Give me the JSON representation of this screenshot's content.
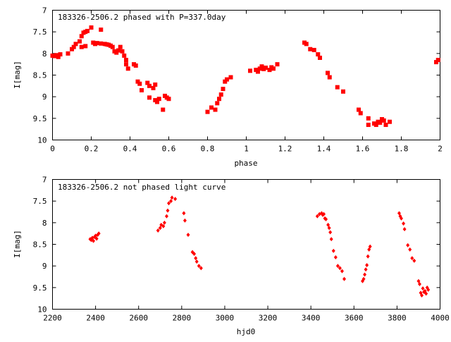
{
  "chart_data": [
    {
      "type": "scatter",
      "title": "183326-2506.2 phased with P=337.0day",
      "xlabel": "phase",
      "ylabel": "I[mag]",
      "xlim": [
        0,
        2
      ],
      "ylim": [
        7,
        10
      ],
      "y_inverted": true,
      "grid": false,
      "marker_color": "#ff0000",
      "marker": "filled-square",
      "x_ticks": [
        "0",
        "0.2",
        "0.4",
        "0.6",
        "0.8",
        "1",
        "1.2",
        "1.4",
        "1.6",
        "1.8",
        "2"
      ],
      "y_ticks": [
        "7",
        "7.5",
        "8",
        "8.5",
        "9",
        "9.5",
        "10"
      ],
      "points": [
        [
          0.0,
          8.05
        ],
        [
          0.01,
          8.06
        ],
        [
          0.02,
          8.04
        ],
        [
          0.03,
          8.08
        ],
        [
          0.04,
          8.02
        ],
        [
          0.08,
          8.0
        ],
        [
          0.1,
          7.9
        ],
        [
          0.11,
          7.85
        ],
        [
          0.12,
          7.78
        ],
        [
          0.14,
          7.72
        ],
        [
          0.15,
          7.6
        ],
        [
          0.16,
          7.52
        ],
        [
          0.17,
          7.5
        ],
        [
          0.18,
          7.48
        ],
        [
          0.15,
          7.85
        ],
        [
          0.17,
          7.83
        ],
        [
          0.2,
          7.4
        ],
        [
          0.21,
          7.75
        ],
        [
          0.22,
          7.78
        ],
        [
          0.23,
          7.76
        ],
        [
          0.25,
          7.77
        ],
        [
          0.25,
          7.45
        ],
        [
          0.27,
          7.78
        ],
        [
          0.28,
          7.79
        ],
        [
          0.29,
          7.8
        ],
        [
          0.3,
          7.82
        ],
        [
          0.31,
          7.85
        ],
        [
          0.32,
          7.95
        ],
        [
          0.33,
          7.98
        ],
        [
          0.34,
          7.93
        ],
        [
          0.35,
          7.85
        ],
        [
          0.36,
          7.95
        ],
        [
          0.37,
          8.05
        ],
        [
          0.38,
          8.15
        ],
        [
          0.38,
          8.25
        ],
        [
          0.39,
          8.35
        ],
        [
          0.42,
          8.25
        ],
        [
          0.43,
          8.28
        ],
        [
          0.44,
          8.65
        ],
        [
          0.45,
          8.7
        ],
        [
          0.46,
          8.85
        ],
        [
          0.49,
          8.68
        ],
        [
          0.5,
          8.75
        ],
        [
          0.5,
          9.02
        ],
        [
          0.52,
          8.8
        ],
        [
          0.53,
          8.72
        ],
        [
          0.53,
          9.08
        ],
        [
          0.54,
          9.12
        ],
        [
          0.55,
          9.05
        ],
        [
          0.57,
          9.3
        ],
        [
          0.58,
          8.98
        ],
        [
          0.59,
          9.02
        ],
        [
          0.6,
          9.05
        ],
        [
          0.8,
          9.35
        ],
        [
          0.82,
          9.25
        ],
        [
          0.84,
          9.3
        ],
        [
          0.85,
          9.15
        ],
        [
          0.86,
          9.05
        ],
        [
          0.87,
          8.95
        ],
        [
          0.88,
          8.82
        ],
        [
          0.89,
          8.65
        ],
        [
          0.9,
          8.6
        ],
        [
          0.92,
          8.55
        ],
        [
          1.02,
          8.4
        ],
        [
          1.05,
          8.38
        ],
        [
          1.06,
          8.42
        ],
        [
          1.07,
          8.35
        ],
        [
          1.08,
          8.3
        ],
        [
          1.09,
          8.36
        ],
        [
          1.1,
          8.33
        ],
        [
          1.12,
          8.38
        ],
        [
          1.13,
          8.32
        ],
        [
          1.14,
          8.35
        ],
        [
          1.16,
          8.25
        ],
        [
          1.3,
          7.75
        ],
        [
          1.31,
          7.78
        ],
        [
          1.33,
          7.9
        ],
        [
          1.35,
          7.92
        ],
        [
          1.37,
          8.02
        ],
        [
          1.38,
          8.1
        ],
        [
          1.42,
          8.45
        ],
        [
          1.43,
          8.55
        ],
        [
          1.47,
          8.78
        ],
        [
          1.5,
          8.88
        ],
        [
          1.58,
          9.3
        ],
        [
          1.59,
          9.38
        ],
        [
          1.63,
          9.5
        ],
        [
          1.63,
          9.65
        ],
        [
          1.66,
          9.62
        ],
        [
          1.67,
          9.65
        ],
        [
          1.68,
          9.58
        ],
        [
          1.69,
          9.6
        ],
        [
          1.7,
          9.52
        ],
        [
          1.71,
          9.55
        ],
        [
          1.72,
          9.65
        ],
        [
          1.74,
          9.58
        ],
        [
          1.98,
          8.2
        ],
        [
          1.99,
          8.15
        ]
      ]
    },
    {
      "type": "scatter",
      "title": "183326-2506.2 not phased light curve",
      "xlabel": "hjd0",
      "ylabel": "I[mag]",
      "xlim": [
        2200,
        4000
      ],
      "ylim": [
        7,
        10
      ],
      "y_inverted": true,
      "grid": false,
      "marker_color": "#ff0000",
      "marker": "filled-diamond",
      "x_ticks": [
        "2200",
        "2400",
        "2600",
        "2800",
        "3000",
        "3200",
        "3400",
        "3600",
        "3800",
        "4000"
      ],
      "y_ticks": [
        "7",
        "7.5",
        "8",
        "8.5",
        "9",
        "9.5",
        "10"
      ],
      "points": [
        [
          2375,
          8.38
        ],
        [
          2380,
          8.4
        ],
        [
          2385,
          8.35
        ],
        [
          2390,
          8.42
        ],
        [
          2395,
          8.33
        ],
        [
          2400,
          8.3
        ],
        [
          2405,
          8.37
        ],
        [
          2410,
          8.28
        ],
        [
          2415,
          8.25
        ],
        [
          2690,
          8.18
        ],
        [
          2700,
          8.12
        ],
        [
          2705,
          8.05
        ],
        [
          2715,
          8.08
        ],
        [
          2720,
          8.0
        ],
        [
          2730,
          7.85
        ],
        [
          2735,
          7.72
        ],
        [
          2740,
          7.55
        ],
        [
          2750,
          7.5
        ],
        [
          2755,
          7.42
        ],
        [
          2770,
          7.45
        ],
        [
          2810,
          7.78
        ],
        [
          2815,
          7.95
        ],
        [
          2830,
          8.28
        ],
        [
          2850,
          8.68
        ],
        [
          2858,
          8.72
        ],
        [
          2865,
          8.82
        ],
        [
          2870,
          8.9
        ],
        [
          2880,
          9.0
        ],
        [
          2890,
          9.05
        ],
        [
          3430,
          7.85
        ],
        [
          3440,
          7.8
        ],
        [
          3450,
          7.78
        ],
        [
          3455,
          7.82
        ],
        [
          3460,
          7.8
        ],
        [
          3465,
          7.9
        ],
        [
          3470,
          7.92
        ],
        [
          3480,
          8.05
        ],
        [
          3485,
          8.12
        ],
        [
          3490,
          8.22
        ],
        [
          3495,
          8.38
        ],
        [
          3505,
          8.65
        ],
        [
          3515,
          8.8
        ],
        [
          3525,
          9.0
        ],
        [
          3535,
          9.05
        ],
        [
          3545,
          9.12
        ],
        [
          3555,
          9.3
        ],
        [
          3640,
          9.35
        ],
        [
          3645,
          9.3
        ],
        [
          3650,
          9.2
        ],
        [
          3655,
          9.08
        ],
        [
          3660,
          8.98
        ],
        [
          3665,
          8.78
        ],
        [
          3670,
          8.62
        ],
        [
          3675,
          8.55
        ],
        [
          3810,
          7.78
        ],
        [
          3815,
          7.85
        ],
        [
          3820,
          7.9
        ],
        [
          3830,
          8.02
        ],
        [
          3835,
          8.15
        ],
        [
          3850,
          8.52
        ],
        [
          3860,
          8.62
        ],
        [
          3870,
          8.82
        ],
        [
          3880,
          8.88
        ],
        [
          3900,
          9.35
        ],
        [
          3905,
          9.42
        ],
        [
          3910,
          9.62
        ],
        [
          3915,
          9.68
        ],
        [
          3920,
          9.52
        ],
        [
          3925,
          9.6
        ],
        [
          3930,
          9.58
        ],
        [
          3935,
          9.64
        ],
        [
          3940,
          9.5
        ],
        [
          3945,
          9.55
        ]
      ]
    }
  ]
}
